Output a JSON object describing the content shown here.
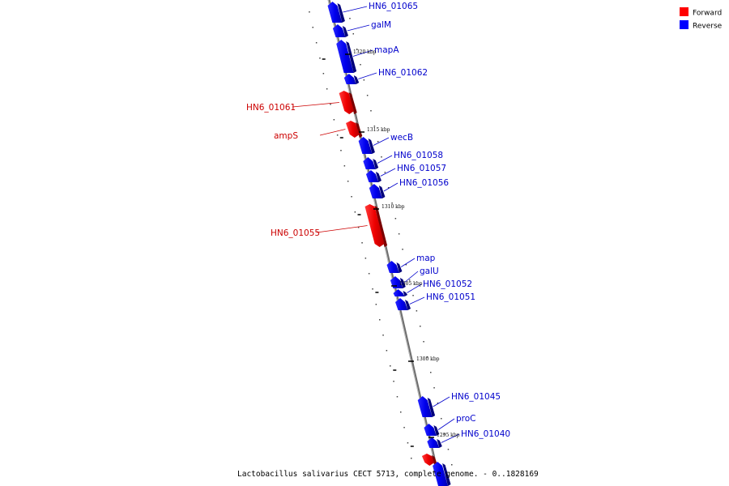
{
  "legend": [
    {
      "label": "Forward",
      "color": "#ff0000"
    },
    {
      "label": "Reverse",
      "color": "#0000ff"
    }
  ],
  "caption": "Lactobacillus salivarius CECT 5713, complete genome. - 0..1828169",
  "scale_labels": [
    "1320 kbp",
    "1315 kbp",
    "1310 kbp",
    "1305 kbp",
    "1300 kbp",
    "1295 kbp"
  ],
  "genes": [
    {
      "name": "HN6_01065",
      "strand": "reverse"
    },
    {
      "name": "galM",
      "strand": "reverse"
    },
    {
      "name": "mapA",
      "strand": "reverse"
    },
    {
      "name": "HN6_01062",
      "strand": "reverse"
    },
    {
      "name": "HN6_01061",
      "strand": "forward"
    },
    {
      "name": "ampS",
      "strand": "forward"
    },
    {
      "name": "wecB",
      "strand": "reverse"
    },
    {
      "name": "HN6_01058",
      "strand": "reverse"
    },
    {
      "name": "HN6_01057",
      "strand": "reverse"
    },
    {
      "name": "HN6_01056",
      "strand": "reverse"
    },
    {
      "name": "HN6_01055",
      "strand": "forward"
    },
    {
      "name": "map",
      "strand": "reverse"
    },
    {
      "name": "galU",
      "strand": "reverse"
    },
    {
      "name": "HN6_01052",
      "strand": "reverse"
    },
    {
      "name": "HN6_01051",
      "strand": "reverse"
    },
    {
      "name": "HN6_01045",
      "strand": "reverse"
    },
    {
      "name": "proC",
      "strand": "reverse"
    },
    {
      "name": "HN6_01040",
      "strand": "reverse"
    }
  ]
}
